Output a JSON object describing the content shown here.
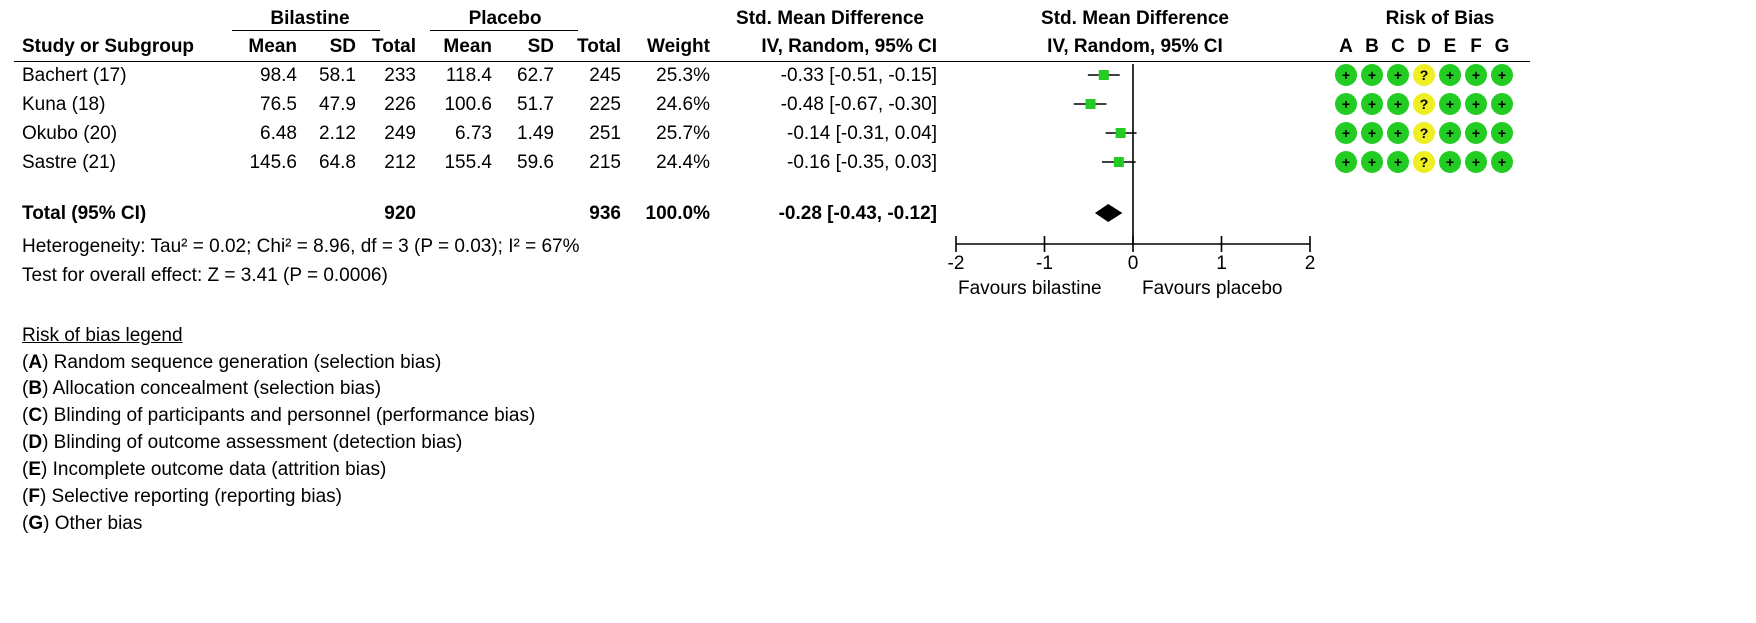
{
  "headers": {
    "group_bilastine": "Bilastine",
    "group_placebo": "Placebo",
    "smd_left_top": "Std. Mean Difference",
    "smd_left_bottom": "IV, Random, 95% CI",
    "smd_right_top": "Std. Mean Difference",
    "smd_right_bottom": "IV, Random, 95% CI",
    "risk_of_bias": "Risk of Bias",
    "study": "Study or Subgroup",
    "mean1": "Mean",
    "sd1": "SD",
    "total1": "Total",
    "mean2": "Mean",
    "sd2": "SD",
    "total2": "Total",
    "weight": "Weight",
    "bias_letters": [
      "A",
      "B",
      "C",
      "D",
      "E",
      "F",
      "G"
    ]
  },
  "studies": [
    {
      "name": "Bachert (17)",
      "mean1": "98.4",
      "sd1": "58.1",
      "total1": "233",
      "mean2": "118.4",
      "sd2": "62.7",
      "total2": "245",
      "weight": "25.3%",
      "ci_text": "-0.33 [-0.51, -0.15]"
    },
    {
      "name": "Kuna (18)",
      "mean1": "76.5",
      "sd1": "47.9",
      "total1": "226",
      "mean2": "100.6",
      "sd2": "51.7",
      "total2": "225",
      "weight": "24.6%",
      "ci_text": "-0.48 [-0.67, -0.30]"
    },
    {
      "name": "Okubo (20)",
      "mean1": "6.48",
      "sd1": "2.12",
      "total1": "249",
      "mean2": "6.73",
      "sd2": "1.49",
      "total2": "251",
      "weight": "25.7%",
      "ci_text": "-0.14 [-0.31, 0.04]"
    },
    {
      "name": "Sastre (21)",
      "mean1": "145.6",
      "sd1": "64.8",
      "total1": "212",
      "mean2": "155.4",
      "sd2": "59.6",
      "total2": "215",
      "weight": "24.4%",
      "ci_text": "-0.16 [-0.35, 0.03]"
    }
  ],
  "total": {
    "label": "Total (95% CI)",
    "total1": "920",
    "total2": "936",
    "weight": "100.0%",
    "ci_text": "-0.28 [-0.43, -0.12]"
  },
  "heterogeneity": "Heterogeneity: Tau² = 0.02; Chi² = 8.96, df = 3 (P = 0.03); I² = 67%",
  "overall_effect": "Test for overall effect: Z = 3.41 (P = 0.0006)",
  "favours_left": "Favours bilastine",
  "favours_right": "Favours placebo",
  "legend": {
    "title": "Risk of bias legend",
    "items": [
      {
        "key": "A",
        "text": "Random sequence generation (selection bias)"
      },
      {
        "key": "B",
        "text": "Allocation concealment (selection bias)"
      },
      {
        "key": "C",
        "text": "Blinding of participants and personnel (performance bias)"
      },
      {
        "key": "D",
        "text": "Blinding of outcome assessment (detection bias)"
      },
      {
        "key": "E",
        "text": "Incomplete outcome data (attrition bias)"
      },
      {
        "key": "F",
        "text": "Selective reporting (reporting bias)"
      },
      {
        "key": "G",
        "text": "Other bias"
      }
    ]
  },
  "colors": {
    "low_risk": "#22cc22",
    "unclear_risk": "#eeee22",
    "marker": "#22cc22",
    "ink": "#000000"
  },
  "chart_data": {
    "type": "forest",
    "xlim": [
      -2,
      2
    ],
    "x_ticks": [
      "-2",
      "-1",
      "0",
      "1",
      "2"
    ],
    "tick_values": [
      -2,
      -1,
      0,
      1,
      2
    ],
    "studies": [
      {
        "name": "Bachert (17)",
        "smd": -0.33,
        "lower": -0.51,
        "upper": -0.15,
        "weight": 25.3
      },
      {
        "name": "Kuna (18)",
        "smd": -0.48,
        "lower": -0.67,
        "upper": -0.3,
        "weight": 24.6
      },
      {
        "name": "Okubo (20)",
        "smd": -0.14,
        "lower": -0.31,
        "upper": 0.04,
        "weight": 25.7
      },
      {
        "name": "Sastre (21)",
        "smd": -0.16,
        "lower": -0.35,
        "upper": 0.03,
        "weight": 24.4
      }
    ],
    "pooled": {
      "smd": -0.28,
      "lower": -0.43,
      "upper": -0.12
    },
    "risk_of_bias": [
      [
        "+",
        "+",
        "+",
        "?",
        "+",
        "+",
        "+"
      ],
      [
        "+",
        "+",
        "+",
        "?",
        "+",
        "+",
        "+"
      ],
      [
        "+",
        "+",
        "+",
        "?",
        "+",
        "+",
        "+"
      ],
      [
        "+",
        "+",
        "+",
        "?",
        "+",
        "+",
        "+"
      ]
    ]
  }
}
